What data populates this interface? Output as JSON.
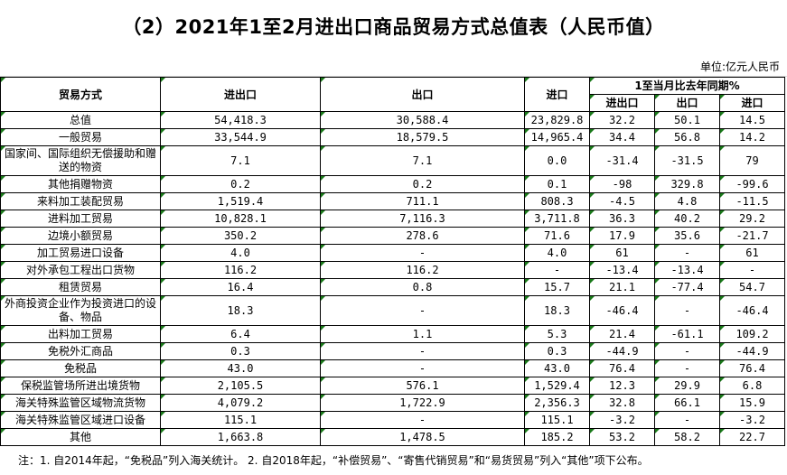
{
  "title": "（2）2021年1至2月进出口商品贸易方式总值表（人民币值）",
  "unit": "单位:亿元人民币",
  "header": {
    "col_mode": "贸易方式",
    "col_total": "进出口",
    "col_export": "出口",
    "col_import": "进口",
    "col_yoy_group": "1至当月比去年同期%",
    "yoy_total": "进出口",
    "yoy_export": "出口",
    "yoy_import": "进口"
  },
  "rows": [
    {
      "name": "总值",
      "total": "54,418.3",
      "export": "30,588.4",
      "import": "23,829.8",
      "yoy_total": "32.2",
      "yoy_export": "50.1",
      "yoy_import": "14.5"
    },
    {
      "name": "一般贸易",
      "total": "33,544.9",
      "export": "18,579.5",
      "import": "14,965.4",
      "yoy_total": "34.4",
      "yoy_export": "56.8",
      "yoy_import": "14.2"
    },
    {
      "name": "国家间、国际组织无偿援助和赠送的物资",
      "total": "7.1",
      "export": "7.1",
      "import": "0.0",
      "yoy_total": "-31.4",
      "yoy_export": "-31.5",
      "yoy_import": "79"
    },
    {
      "name": "其他捐赠物资",
      "total": "0.2",
      "export": "0.2",
      "import": "0.1",
      "yoy_total": "-98",
      "yoy_export": "329.8",
      "yoy_import": "-99.6"
    },
    {
      "name": "来料加工装配贸易",
      "total": "1,519.4",
      "export": "711.1",
      "import": "808.3",
      "yoy_total": "-4.5",
      "yoy_export": "4.8",
      "yoy_import": "-11.5"
    },
    {
      "name": "进料加工贸易",
      "total": "10,828.1",
      "export": "7,116.3",
      "import": "3,711.8",
      "yoy_total": "36.3",
      "yoy_export": "40.2",
      "yoy_import": "29.2"
    },
    {
      "name": "边境小额贸易",
      "total": "350.2",
      "export": "278.6",
      "import": "71.6",
      "yoy_total": "17.9",
      "yoy_export": "35.6",
      "yoy_import": "-21.7"
    },
    {
      "name": "加工贸易进口设备",
      "total": "4.0",
      "export": "-",
      "import": "4.0",
      "yoy_total": "61",
      "yoy_export": "-",
      "yoy_import": "61"
    },
    {
      "name": "对外承包工程出口货物",
      "total": "116.2",
      "export": "116.2",
      "import": "-",
      "yoy_total": "-13.4",
      "yoy_export": "-13.4",
      "yoy_import": "-"
    },
    {
      "name": "租赁贸易",
      "total": "16.4",
      "export": "0.8",
      "import": "15.7",
      "yoy_total": "21.1",
      "yoy_export": "-77.4",
      "yoy_import": "54.7"
    },
    {
      "name": "外商投资企业作为投资进口的设备、物品",
      "total": "18.3",
      "export": "-",
      "import": "18.3",
      "yoy_total": "-46.4",
      "yoy_export": "-",
      "yoy_import": "-46.4"
    },
    {
      "name": "出料加工贸易",
      "total": "6.4",
      "export": "1.1",
      "import": "5.3",
      "yoy_total": "21.4",
      "yoy_export": "-61.1",
      "yoy_import": "109.2"
    },
    {
      "name": "免税外汇商品",
      "total": "0.3",
      "export": "-",
      "import": "0.3",
      "yoy_total": "-44.9",
      "yoy_export": "-",
      "yoy_import": "-44.9"
    },
    {
      "name": "免税品",
      "total": "43.0",
      "export": "-",
      "import": "43.0",
      "yoy_total": "76.4",
      "yoy_export": "-",
      "yoy_import": "76.4"
    },
    {
      "name": "保税监管场所进出境货物",
      "total": "2,105.5",
      "export": "576.1",
      "import": "1,529.4",
      "yoy_total": "12.3",
      "yoy_export": "29.9",
      "yoy_import": "6.8"
    },
    {
      "name": "海关特殊监管区域物流货物",
      "total": "4,079.2",
      "export": "1,722.9",
      "import": "2,356.3",
      "yoy_total": "32.8",
      "yoy_export": "66.1",
      "yoy_import": "15.9"
    },
    {
      "name": "海关特殊监管区域进口设备",
      "total": "115.1",
      "export": "-",
      "import": "115.1",
      "yoy_total": "-3.2",
      "yoy_export": "-",
      "yoy_import": "-3.2"
    },
    {
      "name": "其他",
      "total": "1,663.8",
      "export": "1,478.5",
      "import": "185.2",
      "yoy_total": "53.2",
      "yoy_export": "58.2",
      "yoy_import": "22.7"
    }
  ],
  "note": "注：1. 自2014年起，“免税品”列入海关统计。 2. 自2018年起，“补偿贸易”、“寄售代销贸易”和“易货贸易”列入“其他”项下公布。"
}
